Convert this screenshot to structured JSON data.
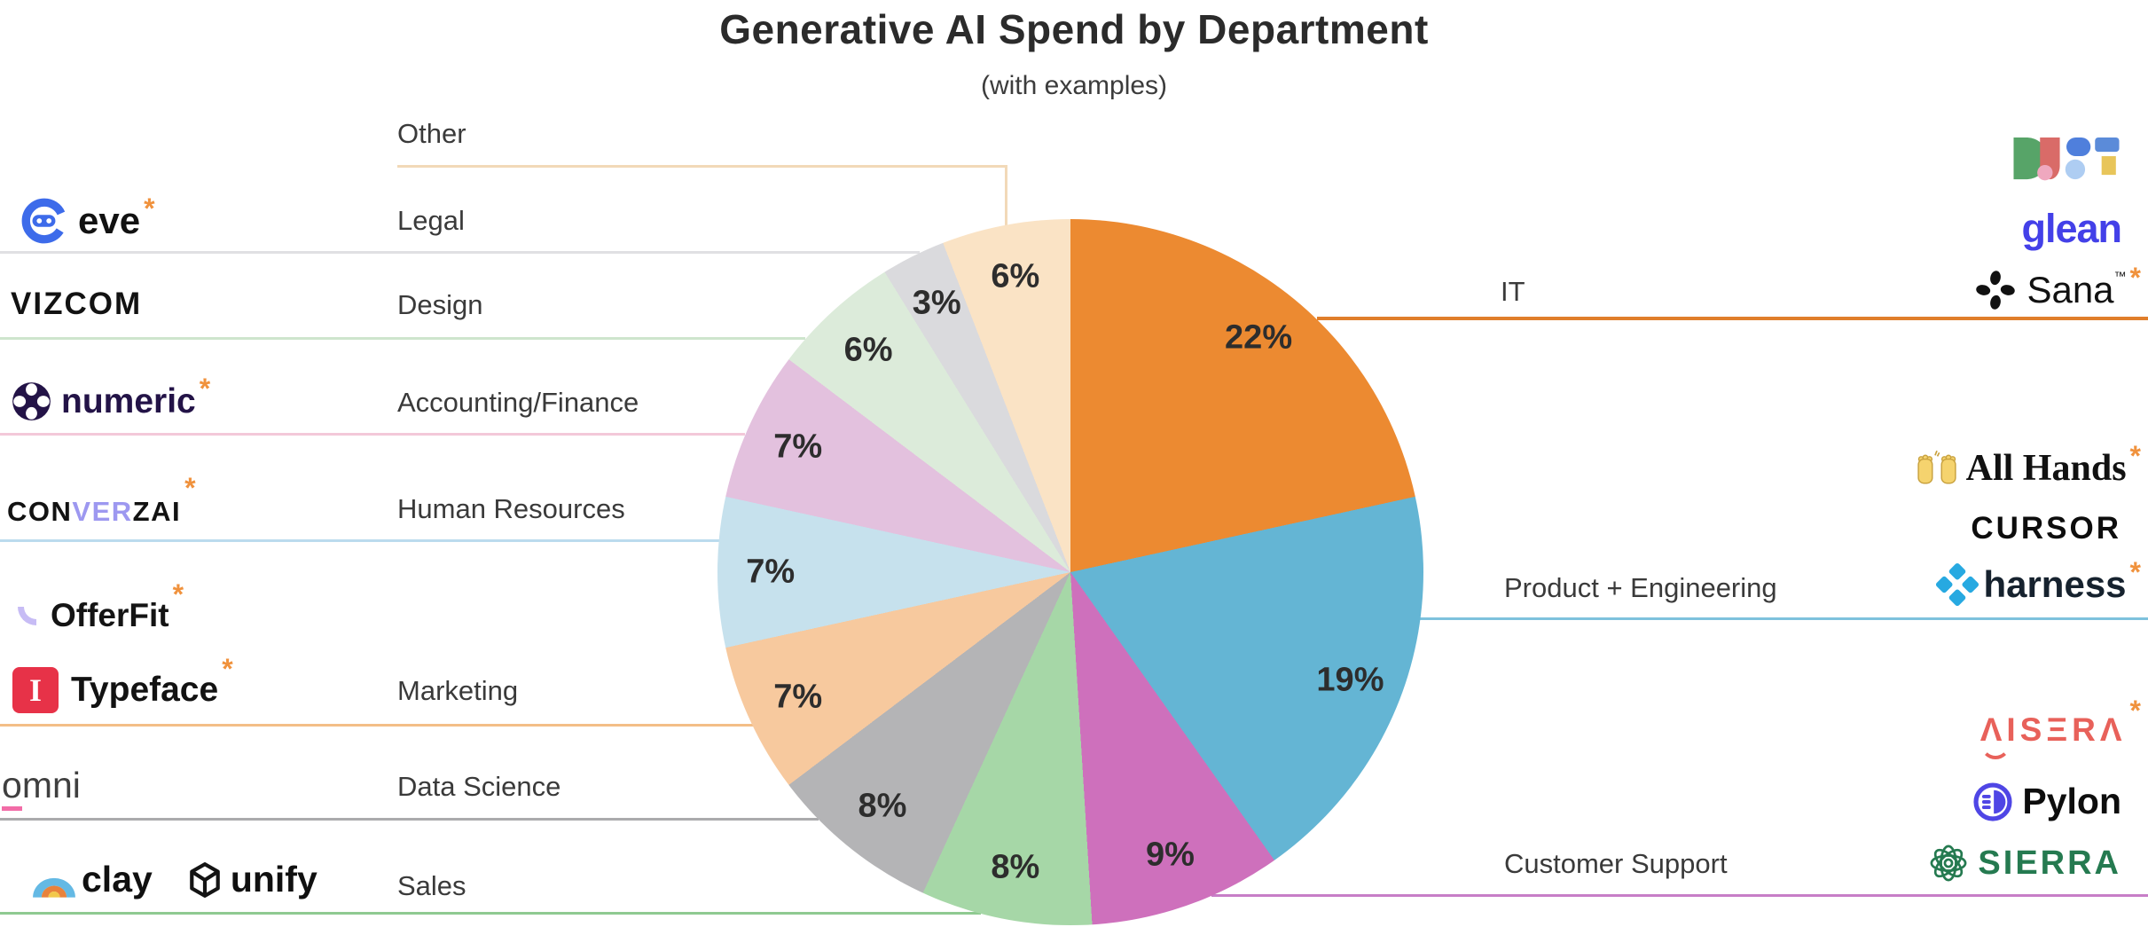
{
  "title": "Generative AI Spend by Department",
  "subtitle": "(with examples)",
  "chart_data": {
    "type": "pie",
    "title": "Generative AI Spend by Department",
    "subtitle": "(with examples)",
    "direction": "clockwise",
    "start_angle_deg": 0,
    "label_suffix": "%",
    "slices": [
      {
        "name": "IT",
        "pct": 22,
        "color": "#EC8A31",
        "line_color": "#E07E2B",
        "examples": [
          "DUST",
          "glean",
          "Sana"
        ]
      },
      {
        "name": "Product + Engineering",
        "pct": 19,
        "color": "#64B5D4",
        "line_color": "#7EC2DD",
        "examples": [
          "All Hands",
          "CURSOR",
          "harness"
        ]
      },
      {
        "name": "Customer Support",
        "pct": 9,
        "color": "#CE70BC",
        "line_color": "#C77EC7",
        "examples": [
          "AISERA",
          "Pylon",
          "SIERRA"
        ]
      },
      {
        "name": "Sales",
        "pct": 8,
        "color": "#A6D7A7",
        "line_color": "#8FCA91",
        "examples": [
          "clay",
          "unify"
        ]
      },
      {
        "name": "Data Science",
        "pct": 8,
        "color": "#B4B4B6",
        "line_color": "#ABABAD",
        "examples": [
          "omni"
        ]
      },
      {
        "name": "Marketing",
        "pct": 7,
        "color": "#F7C99E",
        "line_color": "#F3BE87",
        "examples": [
          "OfferFit",
          "Typeface"
        ]
      },
      {
        "name": "Human Resources",
        "pct": 7,
        "color": "#C6E1ED",
        "line_color": "#BBDBEE",
        "examples": [
          "CONVERZAI"
        ]
      },
      {
        "name": "Accounting/Finance",
        "pct": 7,
        "color": "#E3C1DE",
        "line_color": "#F3C8D9",
        "examples": [
          "numeric"
        ]
      },
      {
        "name": "Design",
        "pct": 6,
        "color": "#DCEBDA",
        "line_color": "#CEE5CD",
        "examples": [
          "VIZCOM"
        ]
      },
      {
        "name": "Legal",
        "pct": 3,
        "color": "#DADADD",
        "line_color": "#E0E0E3",
        "examples": [
          "eve"
        ]
      },
      {
        "name": "Other",
        "pct": 6,
        "color": "#FAE3C5",
        "line_color": "#F2D9B8",
        "examples": []
      }
    ]
  },
  "logos": {
    "asterisk": "*",
    "eve": {
      "text": "eve",
      "starred": true
    },
    "vizcom": {
      "text": "VIZCOM"
    },
    "numeric": {
      "text": "numeric",
      "starred": true,
      "color": "#231347"
    },
    "converzai": {
      "t1": "CON",
      "t2": "VER",
      "t3": "ZAI",
      "starred": true,
      "accent": "#9D98F0"
    },
    "offerfit": {
      "text": "OfferFit",
      "starred": true
    },
    "typeface": {
      "text": "Typeface",
      "badge_letter": "I",
      "badge_color": "#E73248",
      "starred": true
    },
    "omni": {
      "o": "o",
      "rest": "mni",
      "underline_color": "#F26CA7"
    },
    "clay": {
      "text": "clay"
    },
    "unify": {
      "text": "unify"
    },
    "dust": {
      "text": "DUST"
    },
    "glean": {
      "text": "glean",
      "color": "#4340E8"
    },
    "sana": {
      "text": "Sana",
      "tm": "™",
      "starred": true
    },
    "allhands": {
      "text": "All Hands",
      "starred": true
    },
    "cursor": {
      "text": "CURSOR"
    },
    "harness": {
      "text": "harness",
      "color": "#16222E",
      "icon_color": "#27A9E1",
      "starred": true
    },
    "aisera": {
      "text": "ΛISΞRΛ",
      "color": "#E8615A",
      "starred": true
    },
    "pylon": {
      "text": "Pylon",
      "icon_color": "#4F46E5"
    },
    "sierra": {
      "text": "SIERRA",
      "color": "#257A50"
    }
  }
}
